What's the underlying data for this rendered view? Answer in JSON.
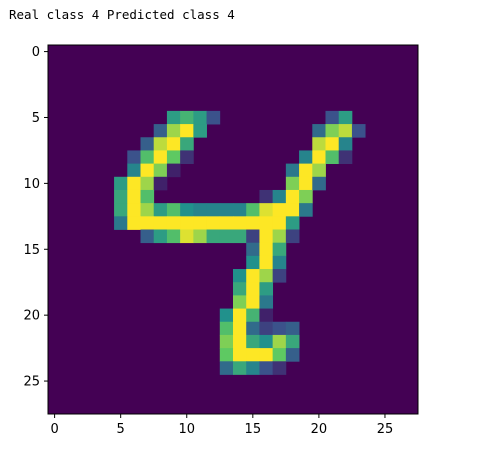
{
  "caption": "Real class 4 Predicted class 4",
  "chart_data": {
    "type": "heatmap",
    "colormap": "viridis",
    "rows": 28,
    "cols": 28,
    "vmin": 0,
    "vmax": 1,
    "xlim": [
      -0.5,
      27.5
    ],
    "ylim": [
      27.5,
      -0.5
    ],
    "xticks": [
      0,
      5,
      10,
      15,
      20,
      25
    ],
    "yticks": [
      0,
      5,
      10,
      15,
      20,
      25
    ],
    "grid": false,
    "pixels": [
      [
        5,
        9,
        0.55
      ],
      [
        5,
        10,
        0.65
      ],
      [
        5,
        11,
        0.55
      ],
      [
        5,
        12,
        0.25
      ],
      [
        5,
        21,
        0.25
      ],
      [
        5,
        22,
        0.55
      ],
      [
        6,
        8,
        0.3
      ],
      [
        6,
        9,
        0.85
      ],
      [
        6,
        10,
        1.0
      ],
      [
        6,
        11,
        0.55
      ],
      [
        6,
        20,
        0.35
      ],
      [
        6,
        21,
        0.8
      ],
      [
        6,
        22,
        0.9
      ],
      [
        6,
        23,
        0.25
      ],
      [
        7,
        7,
        0.3
      ],
      [
        7,
        8,
        0.9
      ],
      [
        7,
        9,
        1.0
      ],
      [
        7,
        10,
        0.6
      ],
      [
        7,
        20,
        0.9
      ],
      [
        7,
        21,
        1.0
      ],
      [
        7,
        22,
        0.45
      ],
      [
        8,
        6,
        0.25
      ],
      [
        8,
        7,
        0.7
      ],
      [
        8,
        8,
        1.0
      ],
      [
        8,
        9,
        0.75
      ],
      [
        8,
        10,
        0.15
      ],
      [
        8,
        19,
        0.45
      ],
      [
        8,
        20,
        1.0
      ],
      [
        8,
        21,
        0.7
      ],
      [
        8,
        22,
        0.15
      ],
      [
        9,
        6,
        0.45
      ],
      [
        9,
        7,
        1.0
      ],
      [
        9,
        8,
        0.8
      ],
      [
        9,
        9,
        0.1
      ],
      [
        9,
        18,
        0.4
      ],
      [
        9,
        19,
        1.0
      ],
      [
        9,
        20,
        0.85
      ],
      [
        10,
        5,
        0.55
      ],
      [
        10,
        6,
        1.0
      ],
      [
        10,
        7,
        0.85
      ],
      [
        10,
        8,
        0.1
      ],
      [
        10,
        18,
        0.8
      ],
      [
        10,
        19,
        1.0
      ],
      [
        10,
        20,
        0.35
      ],
      [
        11,
        5,
        0.6
      ],
      [
        11,
        6,
        1.0
      ],
      [
        11,
        7,
        0.7
      ],
      [
        11,
        16,
        0.15
      ],
      [
        11,
        17,
        0.45
      ],
      [
        11,
        18,
        1.0
      ],
      [
        11,
        19,
        0.8
      ],
      [
        12,
        5,
        0.6
      ],
      [
        12,
        6,
        1.0
      ],
      [
        12,
        7,
        0.85
      ],
      [
        12,
        8,
        0.55
      ],
      [
        12,
        9,
        0.7
      ],
      [
        12,
        10,
        0.5
      ],
      [
        12,
        11,
        0.45
      ],
      [
        12,
        12,
        0.45
      ],
      [
        12,
        13,
        0.45
      ],
      [
        12,
        14,
        0.45
      ],
      [
        12,
        15,
        0.7
      ],
      [
        12,
        16,
        0.95
      ],
      [
        12,
        17,
        1.0
      ],
      [
        12,
        18,
        1.0
      ],
      [
        12,
        19,
        0.4
      ],
      [
        13,
        5,
        0.4
      ],
      [
        13,
        6,
        1.0
      ],
      [
        13,
        7,
        1.0
      ],
      [
        13,
        8,
        1.0
      ],
      [
        13,
        9,
        1.0
      ],
      [
        13,
        10,
        1.0
      ],
      [
        13,
        11,
        1.0
      ],
      [
        13,
        12,
        1.0
      ],
      [
        13,
        13,
        1.0
      ],
      [
        13,
        14,
        1.0
      ],
      [
        13,
        15,
        1.0
      ],
      [
        13,
        16,
        1.0
      ],
      [
        13,
        17,
        1.0
      ],
      [
        13,
        18,
        0.55
      ],
      [
        14,
        7,
        0.3
      ],
      [
        14,
        8,
        0.55
      ],
      [
        14,
        9,
        0.7
      ],
      [
        14,
        10,
        0.95
      ],
      [
        14,
        11,
        0.85
      ],
      [
        14,
        12,
        0.6
      ],
      [
        14,
        13,
        0.6
      ],
      [
        14,
        14,
        0.6
      ],
      [
        14,
        15,
        0.2
      ],
      [
        14,
        16,
        1.0
      ],
      [
        14,
        17,
        0.85
      ],
      [
        14,
        18,
        0.2
      ],
      [
        15,
        15,
        0.35
      ],
      [
        15,
        16,
        1.0
      ],
      [
        15,
        17,
        0.6
      ],
      [
        16,
        15,
        0.5
      ],
      [
        16,
        16,
        1.0
      ],
      [
        16,
        17,
        0.45
      ],
      [
        17,
        14,
        0.5
      ],
      [
        17,
        15,
        1.0
      ],
      [
        17,
        16,
        0.85
      ],
      [
        17,
        17,
        0.2
      ],
      [
        18,
        14,
        0.6
      ],
      [
        18,
        15,
        1.0
      ],
      [
        18,
        16,
        0.55
      ],
      [
        19,
        14,
        0.8
      ],
      [
        19,
        15,
        1.0
      ],
      [
        19,
        16,
        0.4
      ],
      [
        20,
        13,
        0.5
      ],
      [
        20,
        14,
        1.0
      ],
      [
        20,
        15,
        0.65
      ],
      [
        20,
        16,
        0.1
      ],
      [
        21,
        13,
        0.7
      ],
      [
        21,
        14,
        1.0
      ],
      [
        21,
        15,
        0.35
      ],
      [
        21,
        16,
        0.2
      ],
      [
        21,
        17,
        0.25
      ],
      [
        21,
        18,
        0.3
      ],
      [
        22,
        13,
        0.8
      ],
      [
        22,
        14,
        1.0
      ],
      [
        22,
        15,
        0.6
      ],
      [
        22,
        16,
        0.5
      ],
      [
        22,
        17,
        0.85
      ],
      [
        22,
        18,
        0.6
      ],
      [
        23,
        13,
        0.75
      ],
      [
        23,
        14,
        1.0
      ],
      [
        23,
        15,
        1.0
      ],
      [
        23,
        16,
        1.0
      ],
      [
        23,
        17,
        0.75
      ],
      [
        23,
        18,
        0.3
      ],
      [
        24,
        13,
        0.35
      ],
      [
        24,
        14,
        0.6
      ],
      [
        24,
        15,
        0.45
      ],
      [
        24,
        16,
        0.25
      ],
      [
        24,
        17,
        0.15
      ]
    ]
  }
}
